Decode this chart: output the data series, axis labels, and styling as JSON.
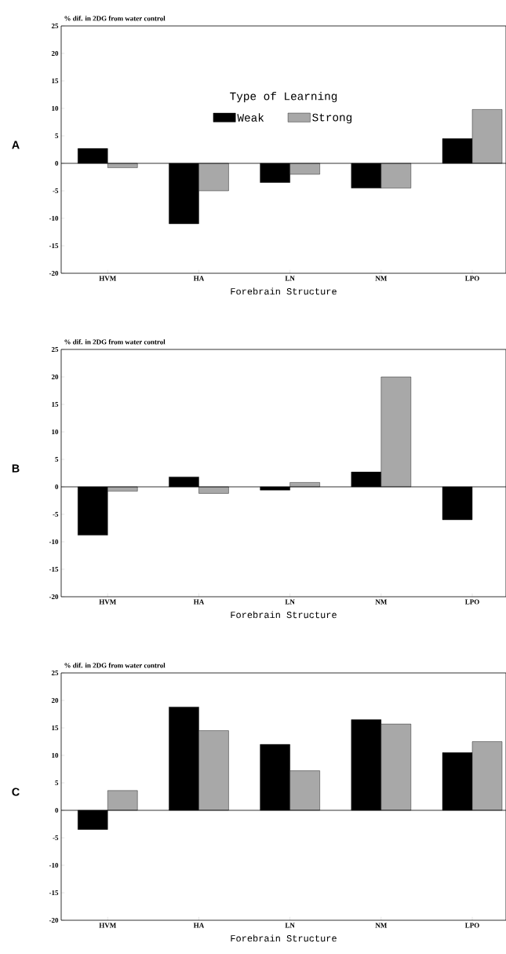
{
  "chart_data": [
    {
      "type": "bar",
      "title": "A",
      "ylabel": "% dif. in 2DG from water control",
      "xlabel": "Forebrain Structure",
      "legend_title": "Type of Learning",
      "legend": "top",
      "categories": [
        "HVM",
        "HA",
        "LN",
        "NM",
        "LPO"
      ],
      "ylim": [
        -20,
        25
      ],
      "yticks": [
        -20,
        -15,
        -10,
        -5,
        0,
        5,
        10,
        15,
        20,
        25
      ],
      "series": [
        {
          "name": "Weak",
          "color": "#000000",
          "values": [
            2.7,
            -11,
            -3.5,
            -4.5,
            4.5
          ]
        },
        {
          "name": "Strong",
          "color": "#a8a8a8",
          "values": [
            -0.8,
            -5,
            -2,
            -4.5,
            9.8
          ]
        }
      ]
    },
    {
      "type": "bar",
      "title": "B",
      "ylabel": "% dif. in 2DG from water control",
      "xlabel": "Forebrain Structure",
      "categories": [
        "HVM",
        "HA",
        "LN",
        "NM",
        "LPO"
      ],
      "ylim": [
        -20,
        25
      ],
      "yticks": [
        -20,
        -15,
        -10,
        -5,
        0,
        5,
        10,
        15,
        20,
        25
      ],
      "series": [
        {
          "color": "#000000",
          "values": [
            -8.8,
            1.8,
            -0.6,
            2.7,
            -6
          ]
        },
        {
          "color": "#a8a8a8",
          "values": [
            -0.8,
            -1.2,
            0.8,
            20,
            null
          ]
        }
      ]
    },
    {
      "type": "bar",
      "title": "C",
      "ylabel": "% dif. in 2DG from water control",
      "xlabel": "Forebrain Structure",
      "categories": [
        "HVM",
        "HA",
        "LN",
        "NM",
        "LPO"
      ],
      "ylim": [
        -20,
        25
      ],
      "yticks": [
        -20,
        -15,
        -10,
        -5,
        0,
        5,
        10,
        15,
        20,
        25
      ],
      "series": [
        {
          "color": "#000000",
          "values": [
            -3.5,
            18.8,
            12,
            16.5,
            10.5
          ]
        },
        {
          "color": "#a8a8a8",
          "values": [
            3.6,
            14.5,
            7.2,
            15.7,
            12.5
          ]
        }
      ]
    }
  ]
}
